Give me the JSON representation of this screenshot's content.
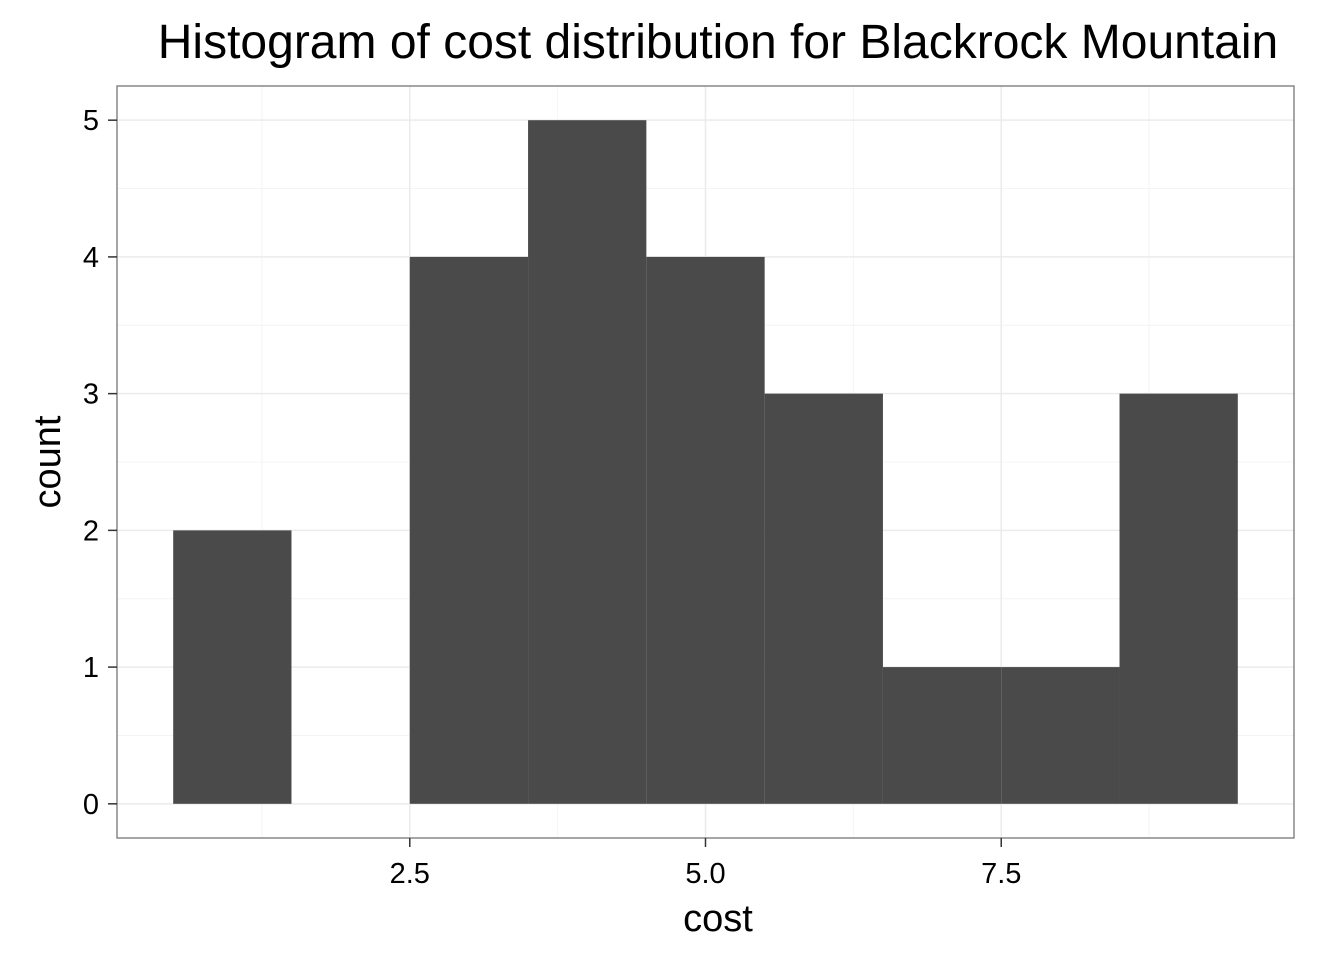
{
  "chart_data": {
    "type": "bar",
    "title": "Histogram of cost distribution for Blackrock Mountain",
    "xlabel": "cost",
    "ylabel": "count",
    "bin_width": 1,
    "bins": [
      {
        "x0": 0.5,
        "x1": 1.5,
        "count": 2
      },
      {
        "x0": 1.5,
        "x1": 2.5,
        "count": 0
      },
      {
        "x0": 2.5,
        "x1": 3.5,
        "count": 4
      },
      {
        "x0": 3.5,
        "x1": 4.5,
        "count": 5
      },
      {
        "x0": 4.5,
        "x1": 5.5,
        "count": 4
      },
      {
        "x0": 5.5,
        "x1": 6.5,
        "count": 3
      },
      {
        "x0": 6.5,
        "x1": 7.5,
        "count": 1
      },
      {
        "x0": 7.5,
        "x1": 8.5,
        "count": 1
      },
      {
        "x0": 8.5,
        "x1": 9.5,
        "count": 3
      }
    ],
    "xlim": [
      0.025,
      9.975
    ],
    "ylim": [
      -0.25,
      5.25
    ],
    "x_ticks": [
      2.5,
      5.0,
      7.5
    ],
    "x_tick_labels": [
      "2.5",
      "5.0",
      "7.5"
    ],
    "y_ticks": [
      0,
      1,
      2,
      3,
      4,
      5
    ],
    "y_tick_labels": [
      "0",
      "1",
      "2",
      "3",
      "4",
      "5"
    ],
    "grid": true,
    "colors": {
      "bar_fill": "#4a4a4a",
      "panel_border": "#7f7f7f",
      "grid_major": "#ebebeb",
      "grid_minor": "#f4f4f4",
      "tick": "#333333",
      "background": "#ffffff"
    }
  }
}
